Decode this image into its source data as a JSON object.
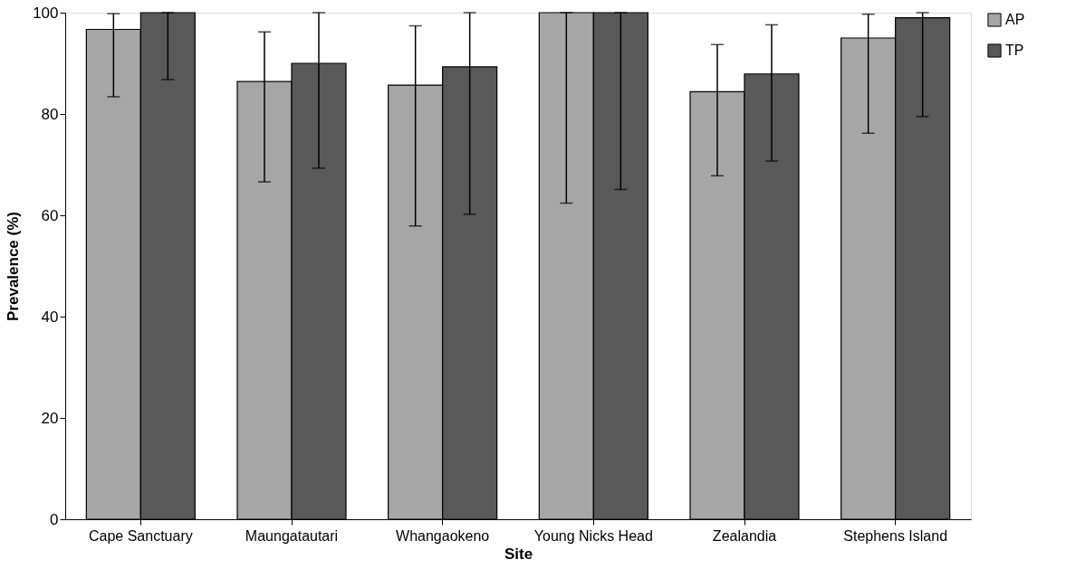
{
  "chart_data": {
    "type": "bar",
    "xlabel": "Site",
    "ylabel": "Prevalence (%)",
    "categories": [
      "Cape Sanctuary",
      "Maungatautari",
      "Whangaokeno",
      "Young Nicks Head",
      "Zealandia",
      "Stephens Island"
    ],
    "series": [
      {
        "name": "AP",
        "color": "#a6a6a6",
        "values": [
          96.7,
          86.4,
          85.7,
          100,
          84.4,
          95.0
        ],
        "errors": [
          [
            83.4,
            99.8
          ],
          [
            66.6,
            96.2
          ],
          [
            57.9,
            97.4
          ],
          [
            62.4,
            100
          ],
          [
            67.8,
            93.7
          ],
          [
            76.2,
            99.7
          ]
        ]
      },
      {
        "name": "TP",
        "color": "#595959",
        "values": [
          100,
          90.0,
          89.3,
          100,
          87.9,
          99.0
        ],
        "errors": [
          [
            86.8,
            100
          ],
          [
            69.3,
            100
          ],
          [
            60.2,
            100
          ],
          [
            65.1,
            100
          ],
          [
            70.7,
            97.6
          ],
          [
            79.5,
            100
          ]
        ]
      }
    ],
    "ylim": [
      0,
      100
    ],
    "yticks": [
      0,
      20,
      40,
      60,
      80,
      100
    ],
    "grid": false,
    "legend": "right"
  }
}
